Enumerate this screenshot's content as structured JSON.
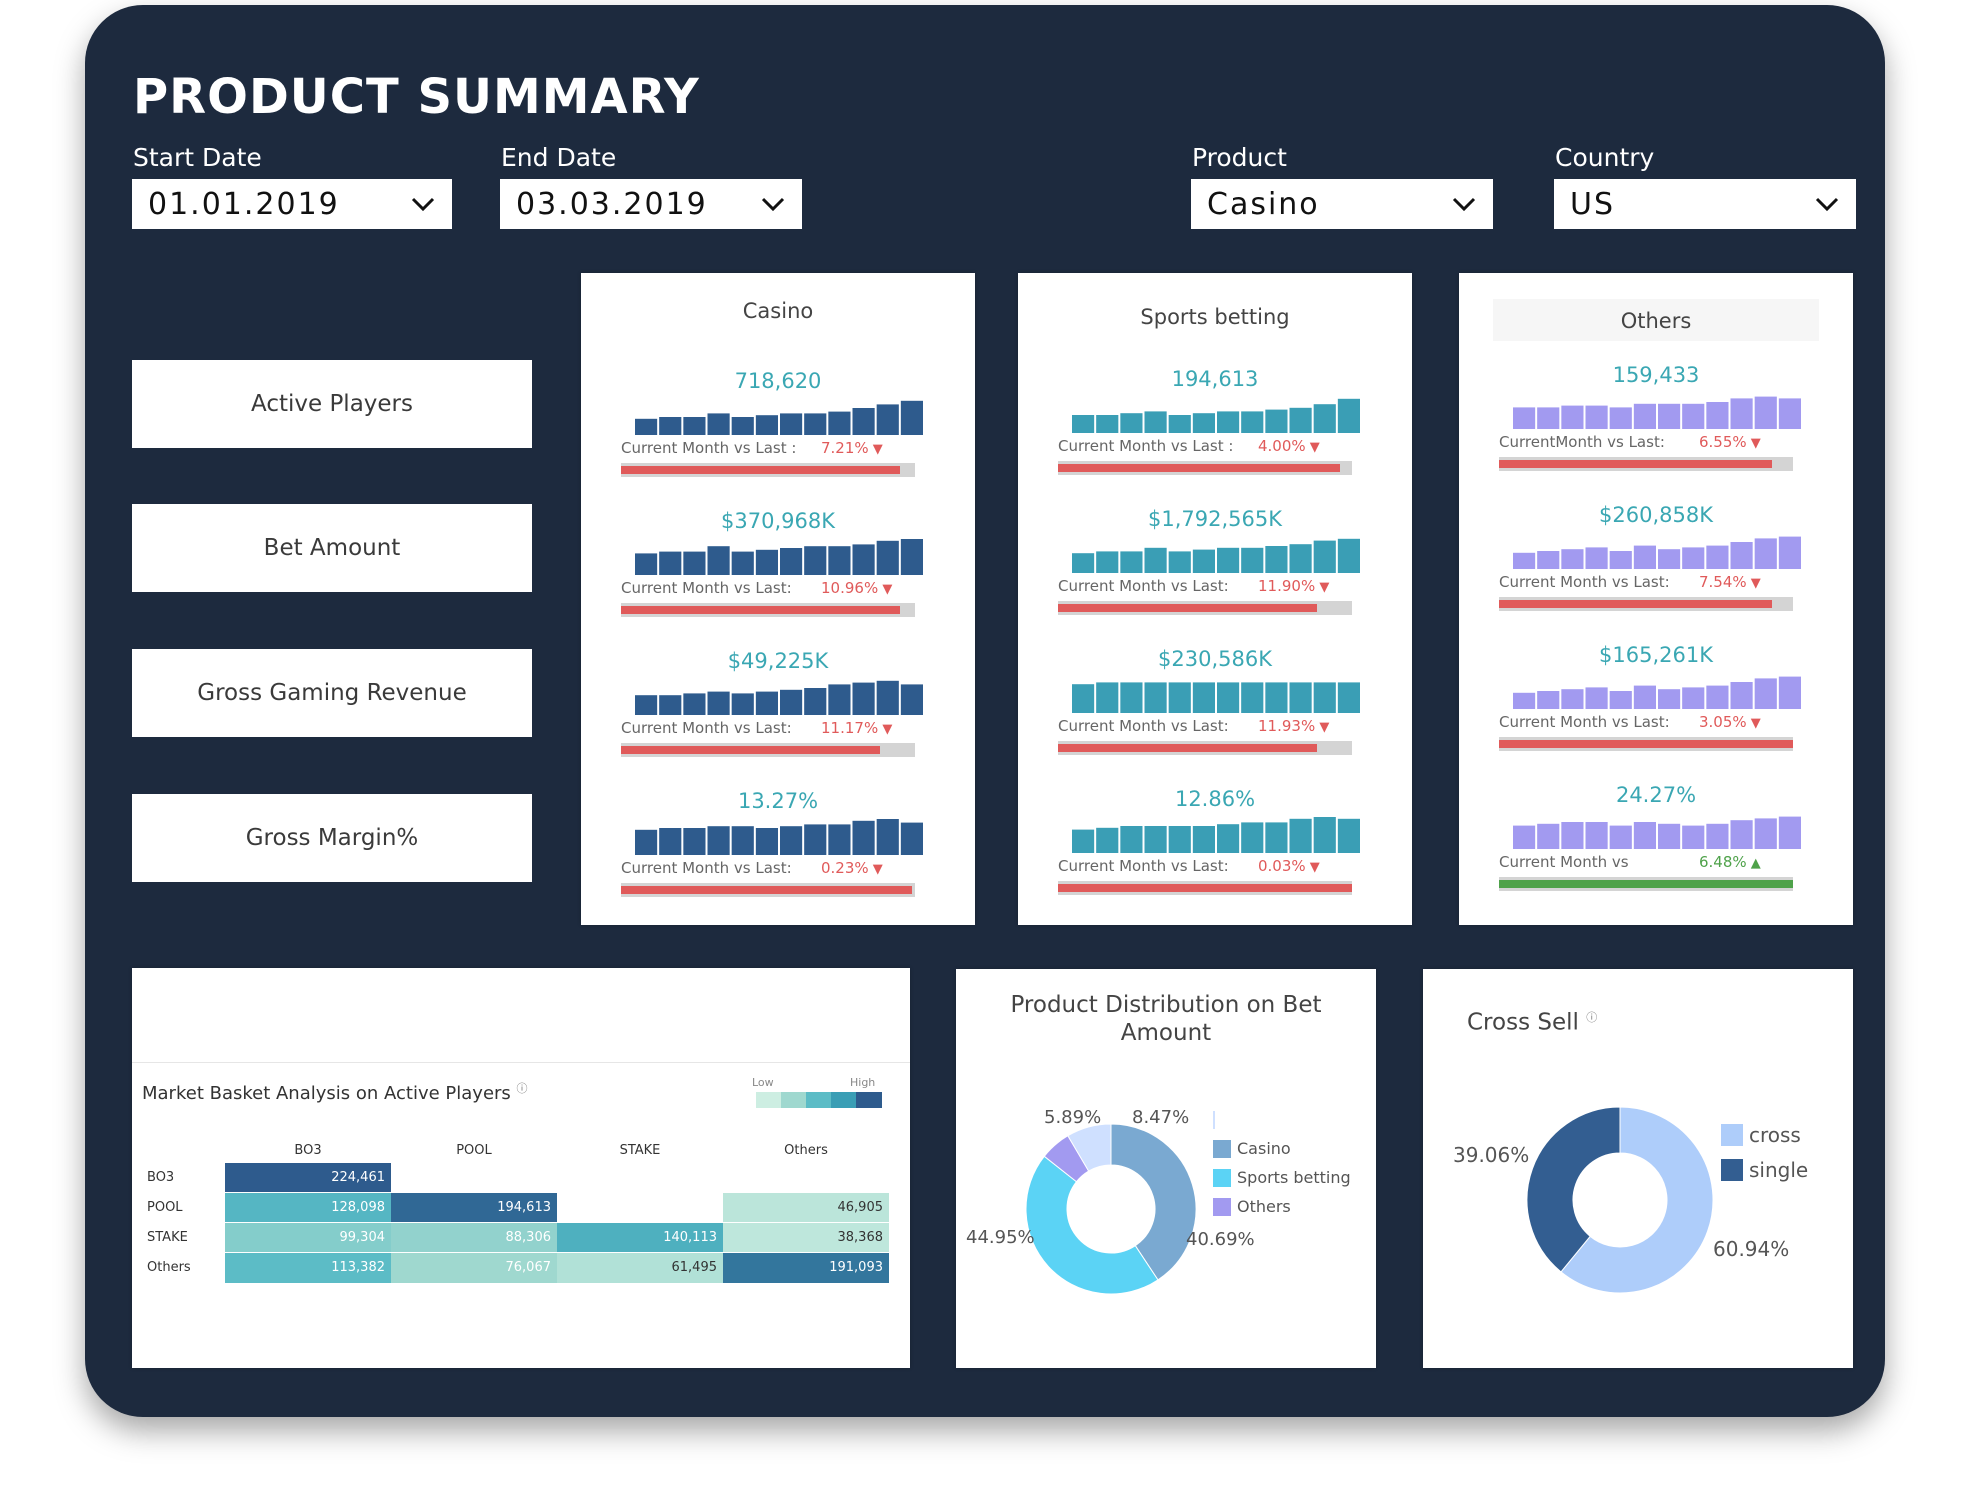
{
  "header": {
    "title": "PRODUCT SUMMARY"
  },
  "filters": {
    "start_date": {
      "label": "Start Date",
      "value": "01.01.2019"
    },
    "end_date": {
      "label": "End Date",
      "value": "03.03.2019"
    },
    "product": {
      "label": "Product",
      "value": "Casino"
    },
    "country": {
      "label": "Country",
      "value": "US"
    }
  },
  "metrics": [
    "Active Players",
    "Bet Amount",
    "Gross Gaming Revenue",
    "Gross Margin%"
  ],
  "colors": {
    "casino": "#2e5b8d",
    "sports": "#3a9eb5",
    "others": "#a29af0",
    "down": "#e05a5a",
    "up": "#4fa24a",
    "value_text": "#3aa7b3"
  },
  "panels": [
    {
      "name": "Casino",
      "kpis": [
        {
          "value": "718,620",
          "label": "Current Month vs Last :",
          "pct": "7.21%",
          "dir": "down",
          "progress": 0.95,
          "bars": [
            0.45,
            0.5,
            0.5,
            0.6,
            0.5,
            0.55,
            0.6,
            0.6,
            0.65,
            0.75,
            0.85,
            0.95
          ]
        },
        {
          "value": "$370,968K",
          "label": "Current Month vs Last:",
          "pct": "10.96%",
          "dir": "down",
          "progress": 0.95,
          "bars": [
            0.6,
            0.65,
            0.65,
            0.8,
            0.65,
            0.7,
            0.75,
            0.8,
            0.8,
            0.85,
            0.95,
            1.0
          ]
        },
        {
          "value": "$49,225K",
          "label": "Current Month vs Last:",
          "pct": "11.17%",
          "dir": "down",
          "progress": 0.88,
          "bars": [
            0.55,
            0.55,
            0.6,
            0.65,
            0.6,
            0.65,
            0.7,
            0.75,
            0.85,
            0.9,
            0.95,
            0.85
          ]
        },
        {
          "value": "13.27%",
          "label": "Current Month vs Last:",
          "pct": "0.23%",
          "dir": "down",
          "progress": 0.99,
          "bars": [
            0.7,
            0.75,
            0.75,
            0.8,
            0.8,
            0.75,
            0.8,
            0.85,
            0.85,
            0.95,
            1.0,
            0.9
          ]
        }
      ]
    },
    {
      "name": "Sports betting",
      "kpis": [
        {
          "value": "194,613",
          "label": "Current Month vs Last :",
          "pct": "4.00%",
          "dir": "down",
          "progress": 0.96,
          "bars": [
            0.5,
            0.5,
            0.55,
            0.6,
            0.5,
            0.55,
            0.6,
            0.6,
            0.65,
            0.7,
            0.8,
            0.95
          ]
        },
        {
          "value": "$1,792,565K",
          "label": "Current Month vs Last:",
          "pct": "11.90%",
          "dir": "down",
          "progress": 0.88,
          "bars": [
            0.55,
            0.6,
            0.6,
            0.7,
            0.6,
            0.65,
            0.7,
            0.7,
            0.75,
            0.8,
            0.9,
            0.95
          ]
        },
        {
          "value": "$230,586K",
          "label": "Current Month vs Last:",
          "pct": "11.93%",
          "dir": "down",
          "progress": 0.88,
          "bars": [
            0.8,
            0.85,
            0.85,
            0.85,
            0.85,
            0.85,
            0.85,
            0.85,
            0.85,
            0.85,
            0.85,
            0.85
          ]
        },
        {
          "value": "12.86%",
          "label": "Current Month vs Last:",
          "pct": "0.03%",
          "dir": "down",
          "progress": 1.0,
          "bars": [
            0.65,
            0.7,
            0.75,
            0.75,
            0.75,
            0.75,
            0.8,
            0.85,
            0.85,
            0.95,
            1.0,
            0.95
          ]
        }
      ]
    },
    {
      "name": "Others",
      "kpis": [
        {
          "value": "159,433",
          "label": "CurrentMonth vs Last:",
          "pct": "6.55%",
          "dir": "down",
          "progress": 0.93,
          "bars": [
            0.6,
            0.6,
            0.65,
            0.65,
            0.6,
            0.7,
            0.7,
            0.7,
            0.75,
            0.85,
            0.9,
            0.85
          ]
        },
        {
          "value": "$260,858K",
          "label": "Current Month vs Last:",
          "pct": "7.54%",
          "dir": "down",
          "progress": 0.93,
          "bars": [
            0.45,
            0.5,
            0.55,
            0.6,
            0.5,
            0.65,
            0.55,
            0.6,
            0.65,
            0.75,
            0.85,
            0.9
          ]
        },
        {
          "value": "$165,261K",
          "label": "Current Month vs Last:",
          "pct": "3.05%",
          "dir": "down",
          "progress": 1.0,
          "bars": [
            0.45,
            0.5,
            0.55,
            0.6,
            0.5,
            0.65,
            0.55,
            0.6,
            0.65,
            0.75,
            0.85,
            0.9
          ]
        },
        {
          "value": "24.27%",
          "label": "Current Month vs",
          "pct": "6.48%",
          "dir": "up",
          "progress": 1.0,
          "bars": [
            0.65,
            0.7,
            0.75,
            0.75,
            0.65,
            0.75,
            0.7,
            0.65,
            0.7,
            0.8,
            0.85,
            0.9
          ]
        }
      ]
    }
  ],
  "market_basket": {
    "title": "Market Basket Analysis on Active Players",
    "info": "ⓘ",
    "legend_low": "Low",
    "legend_high": "High",
    "columns": [
      "BO3",
      "POOL",
      "STAKE",
      "Others"
    ],
    "rows": [
      {
        "label": "BO3",
        "cells": [
          "224,461",
          "",
          "",
          ""
        ],
        "intensity": [
          1.0,
          null,
          null,
          null
        ]
      },
      {
        "label": "POOL",
        "cells": [
          "128,098",
          "194,613",
          "",
          "46,905"
        ],
        "intensity": [
          0.55,
          0.95,
          null,
          0.1
        ]
      },
      {
        "label": "STAKE",
        "cells": [
          "99,304",
          "88,306",
          "140,113",
          "38,368"
        ],
        "intensity": [
          0.35,
          0.3,
          0.6,
          0.08
        ]
      },
      {
        "label": "Others",
        "cells": [
          "113,382",
          "76,067",
          "61,495",
          "191,093"
        ],
        "intensity": [
          0.5,
          0.25,
          0.15,
          0.9
        ]
      }
    ]
  },
  "distribution": {
    "title": "Product Distribution on Bet Amount",
    "chart_data": {
      "type": "pie",
      "title": "Product Distribution on Bet Amount",
      "labels": [
        "Casino",
        "Sports betting",
        "Others",
        ""
      ],
      "values": [
        40.69,
        44.95,
        5.89,
        8.47
      ],
      "value_labels": [
        "40.69%",
        "44.95%",
        "5.89%",
        "8.47%"
      ],
      "colors": [
        "#7aa9d1",
        "#5bd3f5",
        "#a29af0",
        "#cfe0ff"
      ]
    },
    "legend": [
      "Casino",
      "Sports betting",
      "Others"
    ]
  },
  "cross_sell": {
    "title": "Cross Sell",
    "info": "ⓘ",
    "chart_data": {
      "type": "pie",
      "title": "Cross Sell",
      "labels": [
        "cross",
        "single"
      ],
      "values": [
        60.94,
        39.06
      ],
      "value_labels": [
        "60.94%",
        "39.06%"
      ],
      "colors": [
        "#aecdfa",
        "#335e91"
      ]
    },
    "legend": [
      "cross",
      "single"
    ]
  }
}
